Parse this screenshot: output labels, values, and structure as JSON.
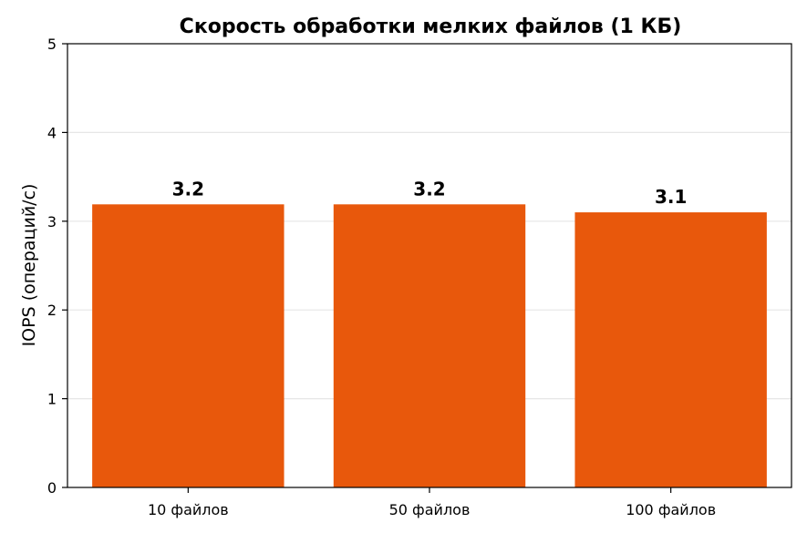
{
  "chart_data": {
    "type": "bar",
    "title": "Скорость обработки мелких файлов (1 КБ)",
    "xlabel": "",
    "ylabel": "IOPS (операций/с)",
    "categories": [
      "10 файлов",
      "50 файлов",
      "100 файлов"
    ],
    "values": [
      3.19,
      3.19,
      3.1
    ],
    "data_labels": [
      "3.2",
      "3.2",
      "3.1"
    ],
    "ylim": [
      0,
      5
    ],
    "yticks": [
      0,
      1,
      2,
      3,
      4,
      5
    ],
    "ytick_labels": [
      "0",
      "1",
      "2",
      "3",
      "4",
      "5"
    ],
    "grid": "y",
    "legend": "none",
    "bar_color": "#e8580c"
  }
}
